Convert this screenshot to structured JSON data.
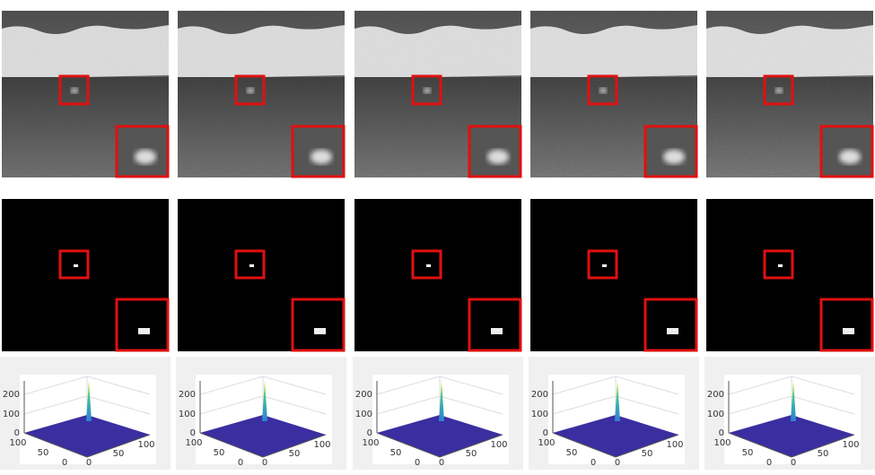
{
  "plots": [
    {
      "zticks": [
        200,
        100,
        0
      ],
      "xticks": [
        100,
        50,
        0
      ],
      "yticks": [
        0,
        50,
        100
      ]
    },
    {
      "zticks": [
        200,
        100,
        0
      ],
      "xticks": [
        100,
        50,
        0
      ],
      "yticks": [
        0,
        50,
        100
      ]
    },
    {
      "zticks": [
        200,
        100,
        0
      ],
      "xticks": [
        100,
        50,
        0
      ],
      "yticks": [
        0,
        50,
        100
      ]
    },
    {
      "zticks": [
        200,
        100,
        0
      ],
      "xticks": [
        100,
        50,
        0
      ],
      "yticks": [
        0,
        50,
        100
      ]
    },
    {
      "zticks": [
        200,
        100,
        0
      ],
      "xticks": [
        100,
        50,
        0
      ],
      "yticks": [
        0,
        50,
        100
      ]
    }
  ]
}
